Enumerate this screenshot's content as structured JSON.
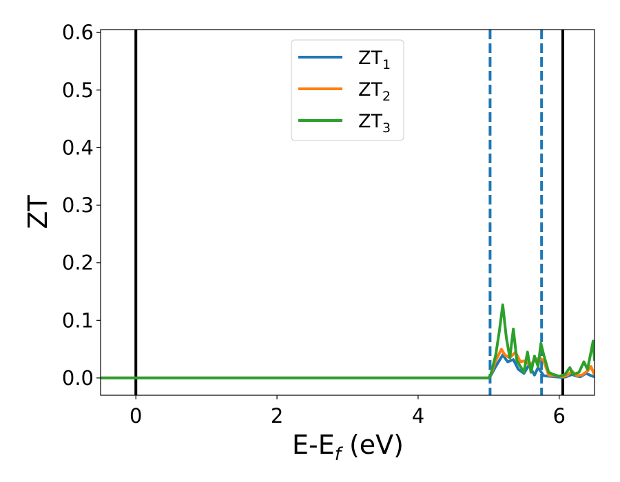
{
  "chart_data": {
    "type": "line",
    "xlabel": "E-E",
    "xlabel_sub": "f",
    "xlabel_unit": " (eV)",
    "ylabel": "ZT",
    "xlim": [
      -0.5,
      6.5
    ],
    "ylim": [
      -0.03,
      0.605
    ],
    "x_ticks": [
      0,
      2,
      4,
      6
    ],
    "y_ticks": [
      0.0,
      0.1,
      0.2,
      0.3,
      0.4,
      0.5,
      0.6
    ],
    "x_tick_labels": [
      "0",
      "2",
      "4",
      "6"
    ],
    "y_tick_labels": [
      "0.0",
      "0.1",
      "0.2",
      "0.3",
      "0.4",
      "0.5",
      "0.6"
    ],
    "grid": false,
    "legend_position": "top-center",
    "vlines_solid": [
      0.0,
      6.05
    ],
    "vlines_dashed": [
      5.02,
      5.75
    ],
    "series": [
      {
        "name": "ZT",
        "name_sub": "1",
        "color": "#1f77b4",
        "x": [
          -0.5,
          5.0,
          5.03,
          5.1,
          5.2,
          5.27,
          5.35,
          5.42,
          5.5,
          5.57,
          5.65,
          5.7,
          5.78,
          5.85,
          5.95,
          6.05,
          6.1,
          6.18,
          6.25,
          6.3,
          6.38,
          6.45,
          6.5
        ],
        "y": [
          0.0,
          0.0,
          0.004,
          0.02,
          0.04,
          0.028,
          0.032,
          0.015,
          0.008,
          0.022,
          0.005,
          0.018,
          0.004,
          0.003,
          0.002,
          0.001,
          0.002,
          0.006,
          0.003,
          0.002,
          0.008,
          0.004,
          0.002
        ]
      },
      {
        "name": "ZT",
        "name_sub": "2",
        "color": "#ff7f0e",
        "x": [
          -0.5,
          5.0,
          5.03,
          5.1,
          5.18,
          5.23,
          5.3,
          5.38,
          5.45,
          5.52,
          5.58,
          5.65,
          5.72,
          5.78,
          5.85,
          5.95,
          6.05,
          6.12,
          6.18,
          6.25,
          6.32,
          6.4,
          6.45,
          6.5
        ],
        "y": [
          0.0,
          0.0,
          0.005,
          0.03,
          0.05,
          0.04,
          0.035,
          0.045,
          0.028,
          0.03,
          0.022,
          0.03,
          0.035,
          0.03,
          0.005,
          0.004,
          0.002,
          0.005,
          0.012,
          0.004,
          0.005,
          0.012,
          0.02,
          0.005
        ]
      },
      {
        "name": "ZT",
        "name_sub": "3",
        "color": "#2ca02c",
        "x": [
          -0.5,
          5.0,
          5.03,
          5.1,
          5.15,
          5.2,
          5.25,
          5.3,
          5.35,
          5.4,
          5.45,
          5.5,
          5.55,
          5.6,
          5.65,
          5.7,
          5.74,
          5.78,
          5.85,
          5.92,
          6.0,
          6.08,
          6.15,
          6.2,
          6.28,
          6.35,
          6.4,
          6.45,
          6.48,
          6.5
        ],
        "y": [
          0.0,
          0.0,
          0.006,
          0.04,
          0.08,
          0.127,
          0.07,
          0.035,
          0.085,
          0.03,
          0.02,
          0.01,
          0.045,
          0.01,
          0.038,
          0.02,
          0.06,
          0.04,
          0.01,
          0.006,
          0.003,
          0.006,
          0.018,
          0.006,
          0.01,
          0.028,
          0.015,
          0.045,
          0.064,
          0.03
        ]
      }
    ]
  }
}
